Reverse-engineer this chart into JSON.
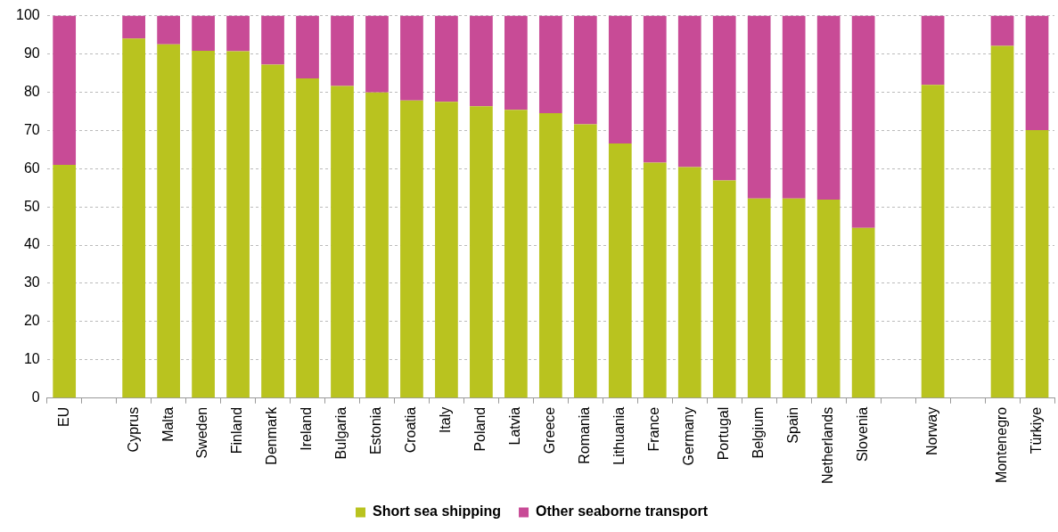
{
  "chart_data": {
    "type": "bar",
    "stacked": true,
    "categories": [
      "EU",
      null,
      "Cyprus",
      "Malta",
      "Sweden",
      "Finland",
      "Denmark",
      "Ireland",
      "Bulgaria",
      "Estonia",
      "Croatia",
      "Italy",
      "Poland",
      "Latvia",
      "Greece",
      "Romania",
      "Lithuania",
      "France",
      "Germany",
      "Portugal",
      "Belgium",
      "Spain",
      "Netherlands",
      "Slovenia",
      null,
      "Norway",
      null,
      "Montenegro",
      "Türkiye"
    ],
    "series": [
      {
        "name": "Short sea shipping",
        "color": "#b9c31f",
        "values": [
          61,
          null,
          94,
          92.5,
          90.8,
          90.7,
          87.2,
          83.6,
          81.6,
          79.9,
          77.8,
          77.5,
          76.3,
          75.4,
          74.5,
          71.6,
          66.6,
          61.6,
          60.4,
          56.9,
          52.2,
          52.2,
          51.9,
          44.5,
          null,
          81.9,
          null,
          92.1,
          70.1
        ]
      },
      {
        "name": "Other seaborne transport",
        "color": "#c84b96",
        "values": [
          39,
          null,
          6,
          7.5,
          9.2,
          9.3,
          12.8,
          16.4,
          18.4,
          20.1,
          22.2,
          22.5,
          23.7,
          24.6,
          25.5,
          28.4,
          33.4,
          38.4,
          39.6,
          43.1,
          47.8,
          47.8,
          48.1,
          55.5,
          null,
          18.1,
          null,
          7.9,
          29.9
        ]
      }
    ],
    "ylim": [
      0,
      100
    ],
    "yticks": [
      0,
      10,
      20,
      30,
      40,
      50,
      60,
      70,
      80,
      90,
      100
    ],
    "grid": "y",
    "legend": "bottom"
  }
}
